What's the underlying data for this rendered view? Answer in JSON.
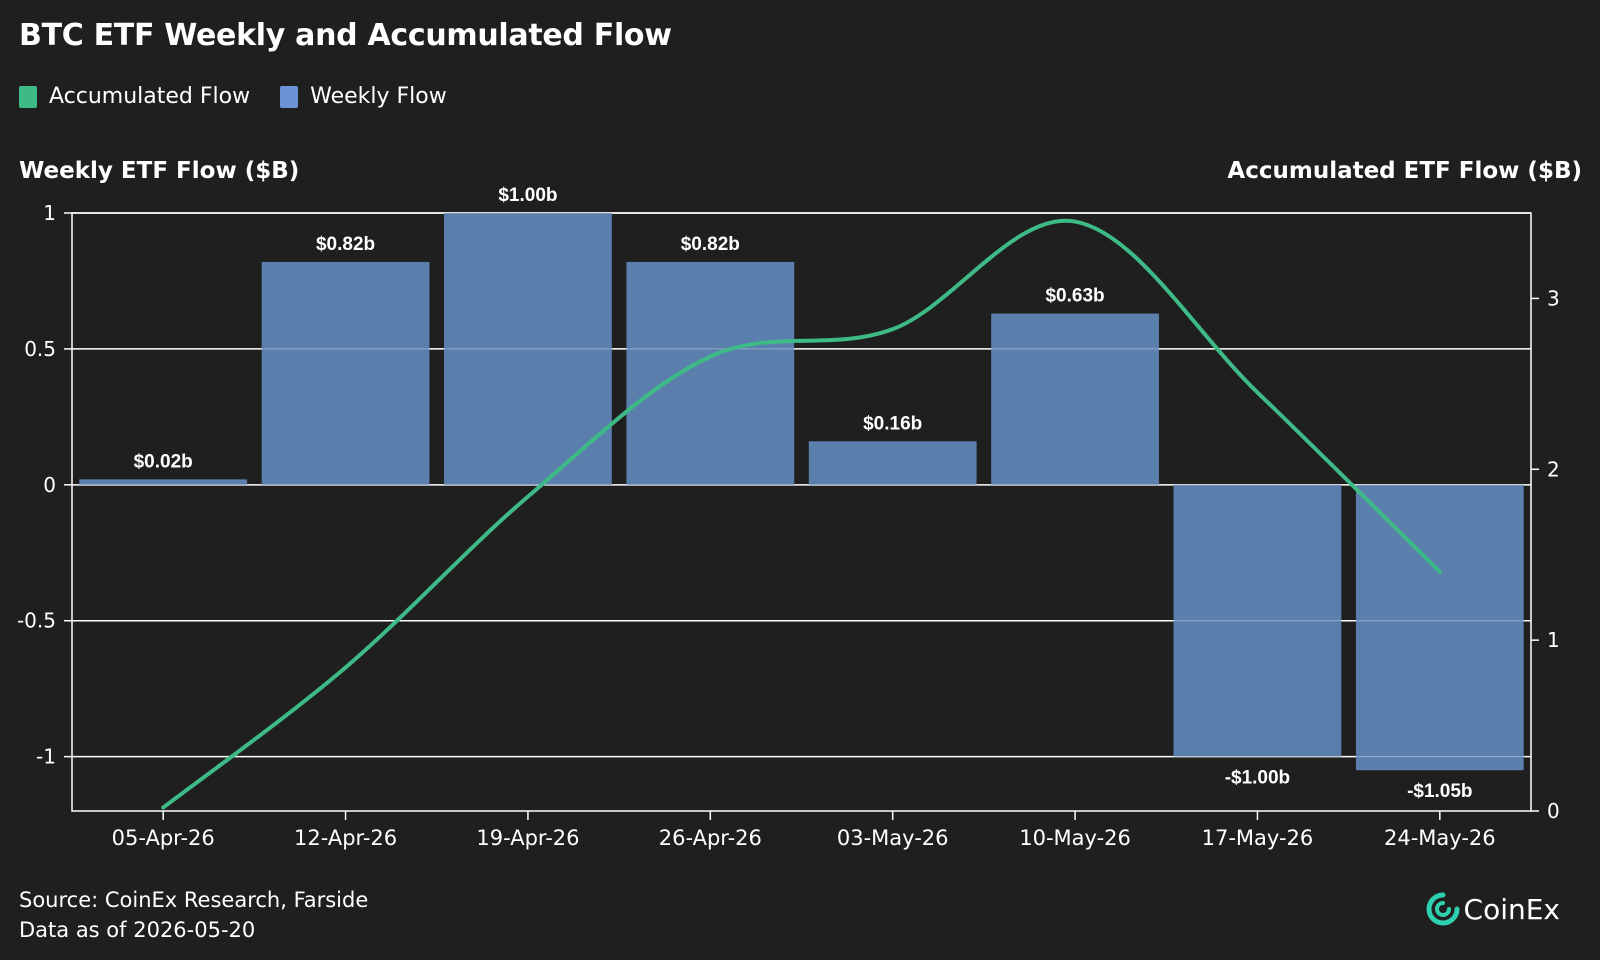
{
  "header": {
    "title": "BTC ETF Weekly and Accumulated Flow"
  },
  "colors": {
    "accumulated": "#3dba86",
    "weekly": "#5b7fad",
    "weekly_legend": "#6b93d6",
    "background": "#1f1f1f",
    "grid": "#ffffff"
  },
  "legend": {
    "items": [
      {
        "label": "Accumulated Flow",
        "color": "#3dba86"
      },
      {
        "label": "Weekly Flow",
        "color": "#6b93d6"
      }
    ]
  },
  "axes": {
    "left_title": "Weekly ETF Flow ($B)",
    "right_title": "Accumulated ETF Flow ($B)"
  },
  "chart_data": {
    "type": "bar",
    "title": "BTC ETF Weekly and Accumulated Flow",
    "categories": [
      "05-Apr-26",
      "12-Apr-26",
      "19-Apr-26",
      "26-Apr-26",
      "03-May-26",
      "10-May-26",
      "17-May-26",
      "24-May-26"
    ],
    "series": [
      {
        "name": "Weekly Flow",
        "type": "bar",
        "axis": "left",
        "values": [
          0.02,
          0.82,
          1.0,
          0.82,
          0.16,
          0.63,
          -1.0,
          -1.05
        ],
        "labels": [
          "$0.02b",
          "$0.82b",
          "$1.00b",
          "$0.82b",
          "$0.16b",
          "$0.63b",
          "-$1.00b",
          "-$1.05b"
        ]
      },
      {
        "name": "Accumulated Flow",
        "type": "line",
        "axis": "right",
        "values": [
          0.02,
          0.84,
          1.84,
          2.66,
          2.82,
          3.45,
          2.45,
          1.4
        ]
      }
    ],
    "left_axis": {
      "label": "Weekly ETF Flow ($B)",
      "min": -1.2,
      "max": 1.0,
      "ticks": [
        1,
        0.5,
        0,
        -0.5,
        -1
      ],
      "tick_labels": [
        "1",
        "0.5",
        "0",
        "-0.5",
        "-1"
      ]
    },
    "right_axis": {
      "label": "Accumulated ETF Flow ($B)",
      "min": 0,
      "max": 3.5,
      "ticks": [
        0,
        1,
        2,
        3
      ],
      "tick_labels": [
        "0",
        "1",
        "2",
        "3"
      ]
    },
    "grid": true,
    "legend_position": "top-left"
  },
  "footer": {
    "source": "Source: CoinEx Research, Farside",
    "date": "Data as of 2026-05-20",
    "brand": "CoinEx"
  }
}
